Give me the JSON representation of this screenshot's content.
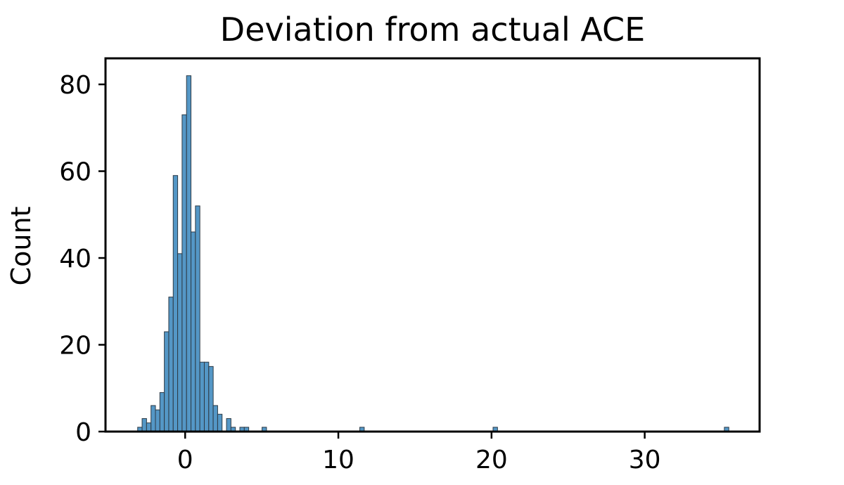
{
  "chart_data": {
    "type": "bar",
    "subtype": "histogram",
    "title": "Deviation from actual ACE",
    "xlabel": "",
    "ylabel": "Count",
    "xlim": [
      -5.2,
      37.5
    ],
    "ylim": [
      0,
      86
    ],
    "xticks": [
      0,
      10,
      20,
      30
    ],
    "yticks": [
      0,
      20,
      40,
      60,
      80
    ],
    "bin_width": 0.29,
    "bars": [
      {
        "x": -3.1,
        "count": 1
      },
      {
        "x": -2.81,
        "count": 3
      },
      {
        "x": -2.52,
        "count": 2
      },
      {
        "x": -2.23,
        "count": 6
      },
      {
        "x": -1.94,
        "count": 5
      },
      {
        "x": -1.65,
        "count": 9
      },
      {
        "x": -1.36,
        "count": 23
      },
      {
        "x": -1.07,
        "count": 31
      },
      {
        "x": -0.78,
        "count": 59
      },
      {
        "x": -0.49,
        "count": 41
      },
      {
        "x": -0.2,
        "count": 73
      },
      {
        "x": 0.09,
        "count": 82
      },
      {
        "x": 0.38,
        "count": 46
      },
      {
        "x": 0.67,
        "count": 52
      },
      {
        "x": 0.96,
        "count": 16
      },
      {
        "x": 1.25,
        "count": 16
      },
      {
        "x": 1.54,
        "count": 15
      },
      {
        "x": 1.83,
        "count": 6
      },
      {
        "x": 2.12,
        "count": 4
      },
      {
        "x": 2.7,
        "count": 3
      },
      {
        "x": 2.99,
        "count": 1
      },
      {
        "x": 3.57,
        "count": 1
      },
      {
        "x": 3.86,
        "count": 1
      },
      {
        "x": 5.02,
        "count": 1
      },
      {
        "x": 11.4,
        "count": 1
      },
      {
        "x": 20.1,
        "count": 1
      },
      {
        "x": 35.2,
        "count": 1
      }
    ],
    "bar_color": "#5497c6",
    "edge_color": "#2d3a45",
    "grid": false,
    "legend": "none"
  }
}
